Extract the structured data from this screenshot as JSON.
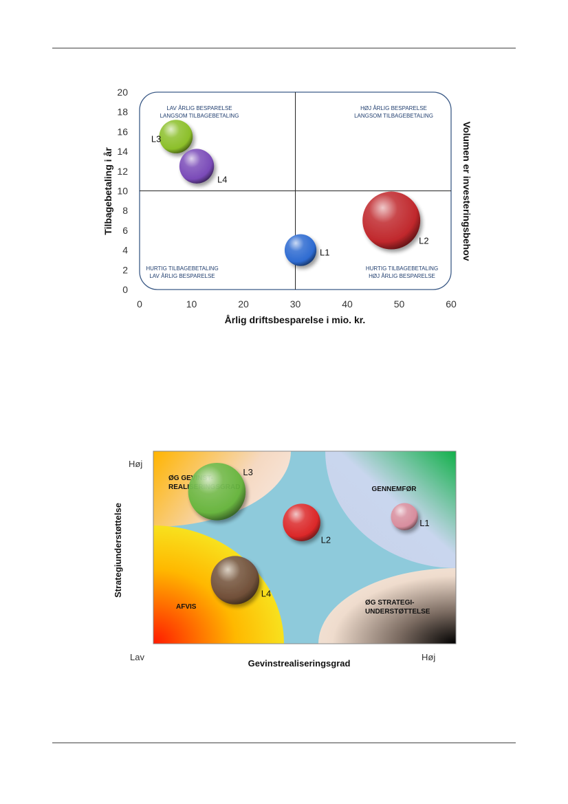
{
  "chart_data": [
    {
      "type": "scatter",
      "subtype": "bubble",
      "title": "",
      "xlabel": "Årlig driftsbesparelse i mio. kr.",
      "ylabel": "Tilbagebetaling i år",
      "ylabel_right": "Volumen er investeringsbehov",
      "xlim": [
        0,
        60
      ],
      "ylim": [
        0,
        20
      ],
      "xticks": [
        "0",
        "10",
        "20",
        "30",
        "40",
        "50",
        "60"
      ],
      "yticks": [
        "0",
        "2",
        "4",
        "6",
        "8",
        "10",
        "12",
        "14",
        "16",
        "18",
        "20"
      ],
      "divider_x": 30,
      "divider_y": 10,
      "quadrants": [
        {
          "position": "top-left",
          "lines": [
            "LAV ÅRLIG BESPARELSE",
            "LANGSOM TILBAGEBETALING"
          ]
        },
        {
          "position": "top-right",
          "lines": [
            "HØJ ÅRLIG BESPARELSE",
            "LANGSOM TILBAGEBETALING"
          ]
        },
        {
          "position": "bottom-left",
          "lines": [
            "HURTIG TILBAGEBETALING",
            "LAV ÅRLIG BESPARELSE"
          ]
        },
        {
          "position": "bottom-right",
          "lines": [
            "HURTIG TILBAGEBETALING",
            "HØJ ÅRLIG BESPARELSE"
          ]
        }
      ],
      "points": [
        {
          "label": "L1",
          "x": 31,
          "y": 4,
          "size": 0.55,
          "color": "#2e6bd1"
        },
        {
          "label": "L2",
          "x": 48.5,
          "y": 7,
          "size": 1.0,
          "color": "#c0282c"
        },
        {
          "label": "L3",
          "x": 7,
          "y": 15.5,
          "size": 0.58,
          "color": "#8cbf2a"
        },
        {
          "label": "L4",
          "x": 11,
          "y": 12.5,
          "size": 0.6,
          "color": "#7a4bb8"
        }
      ]
    },
    {
      "type": "scatter",
      "subtype": "bubble-matrix",
      "title": "",
      "xlabel": "Gevinstrealiseringsgrad",
      "ylabel": "Strategiunderstøttelse",
      "x_low": "Lav",
      "x_high": "Høj",
      "y_high": "Høj",
      "zones": [
        {
          "position": "top-left",
          "lines": [
            "ØG GEVINST-",
            "REALISERINGSGRAD"
          ]
        },
        {
          "position": "top-right",
          "lines": [
            "GENNEMFØR"
          ]
        },
        {
          "position": "bottom-left",
          "lines": [
            "AFVIS"
          ]
        },
        {
          "position": "bottom-right",
          "lines": [
            "ØG STRATEGI-",
            "UNDERSTØTTELSE"
          ]
        }
      ],
      "points": [
        {
          "label": "L1",
          "x": 0.83,
          "y": 0.66,
          "size": 0.45,
          "color": "#d98a9a"
        },
        {
          "label": "L2",
          "x": 0.49,
          "y": 0.63,
          "size": 0.62,
          "color": "#e02020"
        },
        {
          "label": "L3",
          "x": 0.21,
          "y": 0.79,
          "size": 0.95,
          "color": "#62b43a"
        },
        {
          "label": "L4",
          "x": 0.27,
          "y": 0.33,
          "size": 0.8,
          "color": "#6a4a3c"
        }
      ]
    }
  ]
}
